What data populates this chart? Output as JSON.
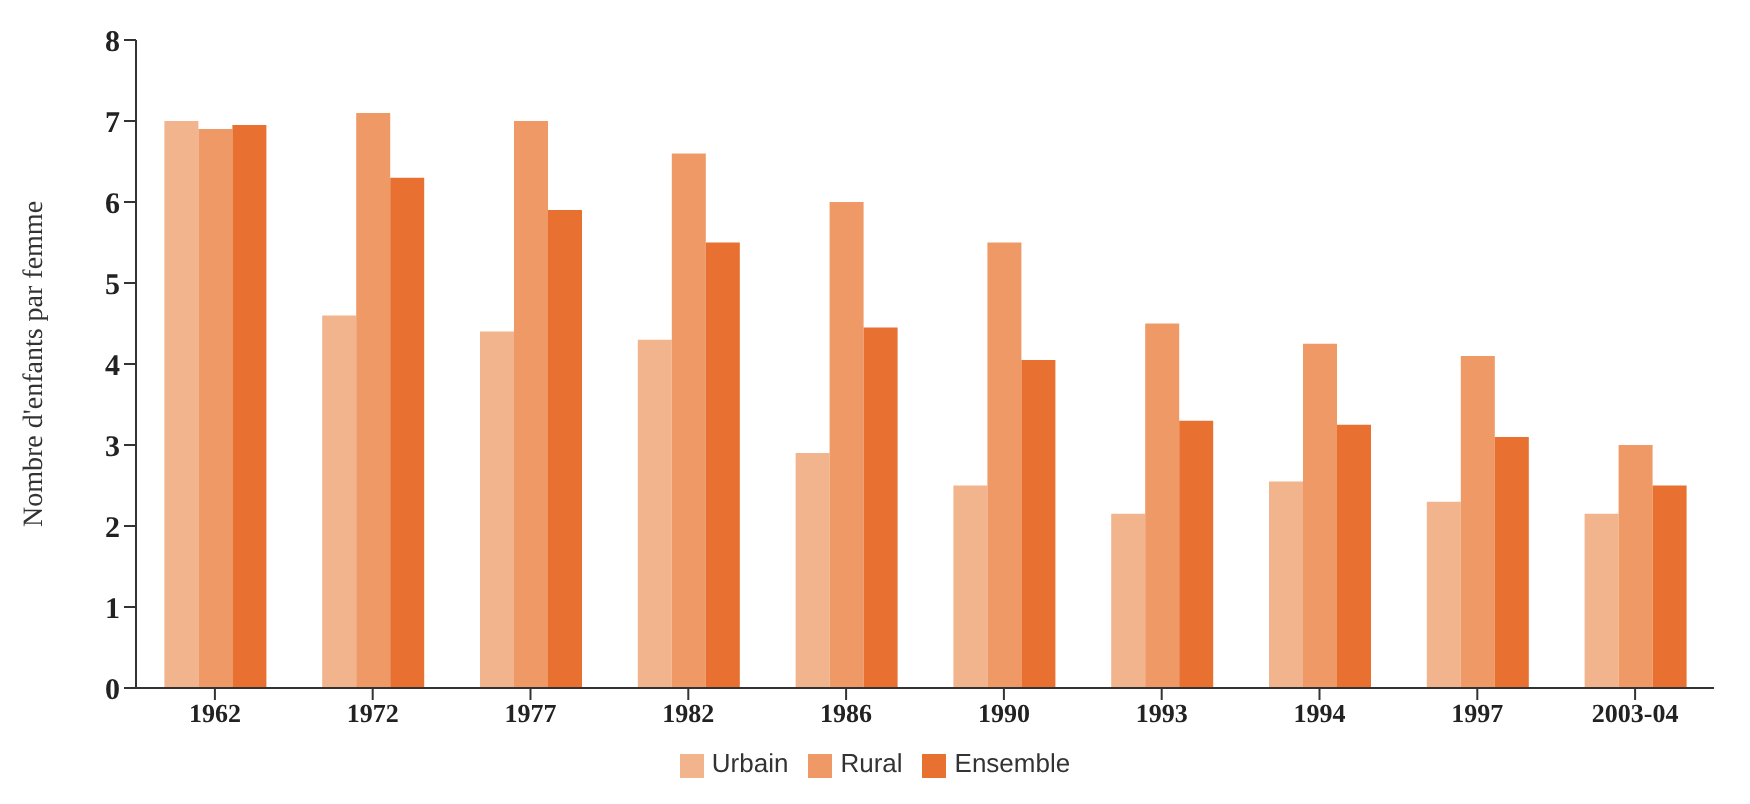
{
  "chart_data": {
    "type": "bar",
    "ylabel": "Nombre d'enfants par femme",
    "categories": [
      "1962",
      "1972",
      "1977",
      "1982",
      "1986",
      "1990",
      "1993",
      "1994",
      "1997",
      "2003-04"
    ],
    "series": [
      {
        "name": "Urbain",
        "color": "#f2b48c",
        "values": [
          7.0,
          4.6,
          4.4,
          4.3,
          2.9,
          2.5,
          2.15,
          2.55,
          2.3,
          2.15
        ]
      },
      {
        "name": "Rural",
        "color": "#ee9966",
        "values": [
          6.9,
          7.1,
          7.0,
          6.6,
          6.0,
          5.5,
          4.5,
          4.25,
          4.1,
          3.0
        ]
      },
      {
        "name": "Ensemble",
        "color": "#e87030",
        "values": [
          6.95,
          6.3,
          5.9,
          5.5,
          4.45,
          4.05,
          3.3,
          3.25,
          3.1,
          2.5
        ]
      }
    ],
    "ylim": [
      0,
      8
    ],
    "yticks": [
      0,
      1,
      2,
      3,
      4,
      5,
      6,
      7,
      8
    ],
    "grid": false,
    "legend": "bottom"
  }
}
